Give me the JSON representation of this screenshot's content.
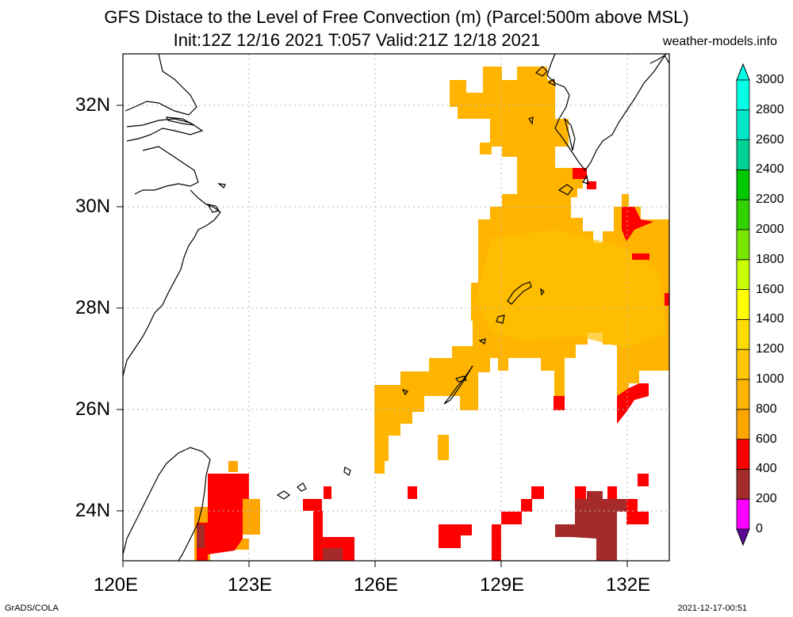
{
  "title_line1": "GFS Distace to the Level of Free Convection (m) (Parcel:500m above MSL)",
  "title_line2": "Init:12Z 12/16 2021 T:057 Valid:21Z 12/18 2021",
  "site": "weather-models.info",
  "footer_left": "GrADS/COLA",
  "footer_right": "2021-12-17-00:51",
  "map": {
    "lon_range": [
      120,
      133
    ],
    "lat_range": [
      23,
      33
    ],
    "lon_ticks": [
      "120E",
      "123E",
      "126E",
      "129E",
      "132E"
    ],
    "lat_ticks": [
      "24N",
      "26N",
      "28N",
      "30N",
      "32N"
    ],
    "lon_tick_values": [
      120,
      123,
      126,
      129,
      132
    ],
    "lat_tick_values": [
      24,
      26,
      28,
      30,
      32
    ]
  },
  "colorbar": {
    "labels": [
      "0",
      "200",
      "400",
      "600",
      "800",
      "1000",
      "1200",
      "1400",
      "1600",
      "1800",
      "2000",
      "2200",
      "2400",
      "2600",
      "2800",
      "3000"
    ],
    "colors": [
      "#5a0a96",
      "#ff00ff",
      "#a52a2a",
      "#ff0000",
      "#ffa500",
      "#ffb400",
      "#ffc800",
      "#ffdc00",
      "#ffff00",
      "#c8ff00",
      "#78e600",
      "#32d200",
      "#00c800",
      "#00d296",
      "#00e6c8",
      "#00ffe6"
    ]
  },
  "colors": {
    "dark_red": "#a52a2a",
    "red": "#ff0000",
    "orange": "#ffa500",
    "light_orange": "#ffb400",
    "coast": "#000000",
    "grid": "#b4b4b4"
  }
}
